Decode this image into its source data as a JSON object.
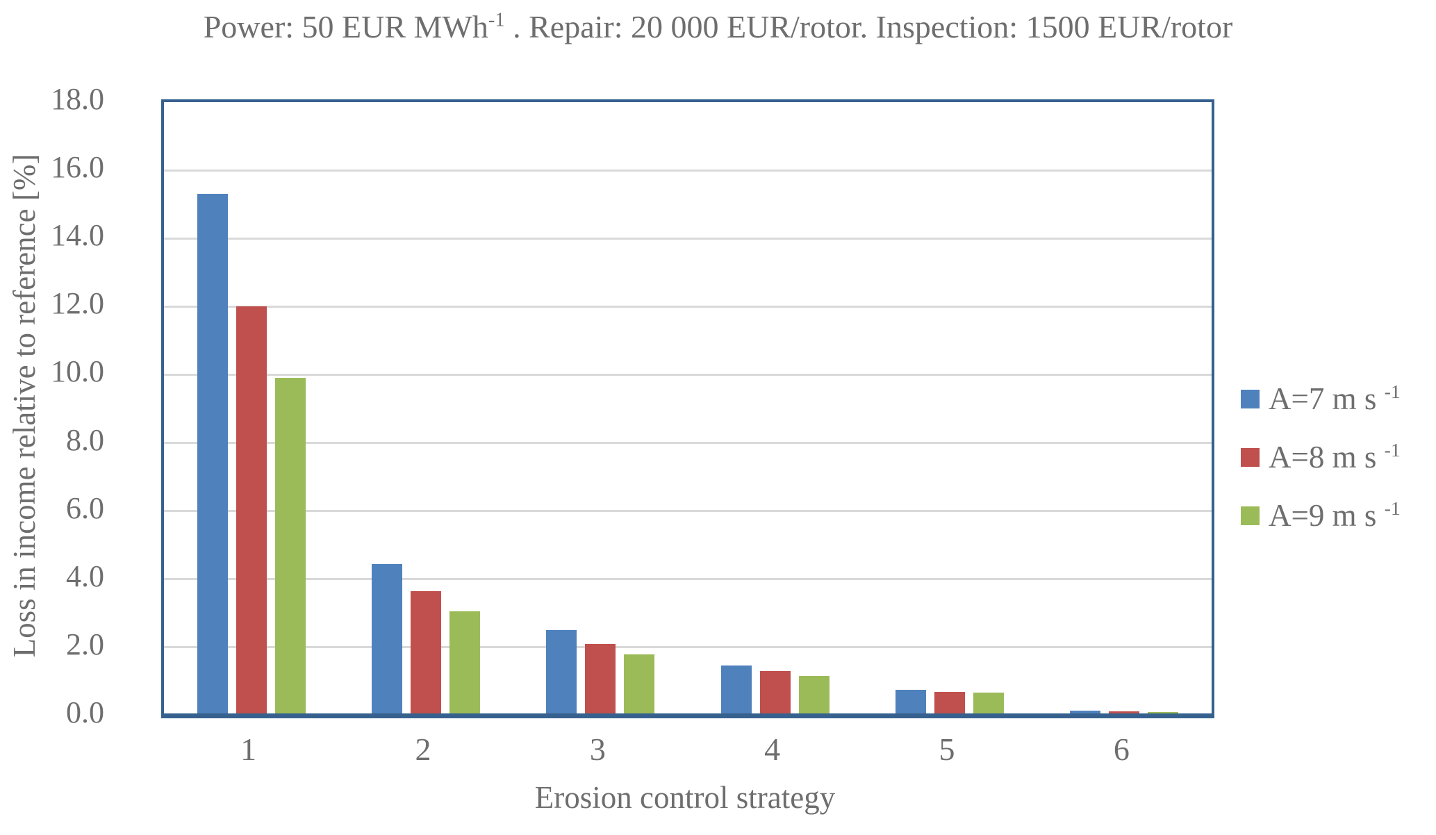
{
  "title": {
    "prefix": "Power: 50 EUR MWh",
    "sup": "-1",
    "suffix": " . Repair: 20 000 EUR/rotor. Inspection: 1500 EUR/rotor"
  },
  "axes": {
    "y_title": "Loss in income relative to reference [%]",
    "x_title": "Erosion control strategy",
    "y_tick_labels": [
      "18.0",
      "16.0",
      "14.0",
      "12.0",
      "10.0",
      "8.0",
      "6.0",
      "4.0",
      "2.0",
      "0.0"
    ],
    "y_max": 18,
    "y_min": 0
  },
  "legend": [
    {
      "base": "A=7 m s",
      "sup": "-1",
      "color": "#4F81BD"
    },
    {
      "base": "A=8 m s",
      "sup": "-1",
      "color": "#C0504D"
    },
    {
      "base": "A=9 m s",
      "sup": "-1",
      "color": "#9BBB59"
    }
  ],
  "colors": {
    "frame": "#36618F",
    "gridline": "#D9D9D9",
    "text": "#6e6e6e",
    "series_blue": "#4F81BD",
    "series_red": "#C0504D",
    "series_green": "#9BBB59"
  },
  "chart_data": {
    "type": "bar",
    "categories": [
      "1",
      "2",
      "3",
      "4",
      "5",
      "6"
    ],
    "series": [
      {
        "name": "A=7 m s-1",
        "color": "#4F81BD",
        "values": [
          15.3,
          4.45,
          2.5,
          1.47,
          0.75,
          0.15
        ]
      },
      {
        "name": "A=8 m s-1",
        "color": "#C0504D",
        "values": [
          12.0,
          3.65,
          2.1,
          1.3,
          0.7,
          0.12
        ]
      },
      {
        "name": "A=9 m s-1",
        "color": "#9BBB59",
        "values": [
          9.9,
          3.05,
          1.8,
          1.17,
          0.67,
          0.1
        ]
      }
    ],
    "title": "Power: 50 EUR MWh-1 . Repair: 20 000 EUR/rotor. Inspection: 1500 EUR/rotor",
    "xlabel": "Erosion control strategy",
    "ylabel": "Loss in income relative to reference [%]",
    "ylim": [
      0,
      18
    ],
    "y_tick_step": 2,
    "grid": true,
    "legend_position": "right"
  }
}
